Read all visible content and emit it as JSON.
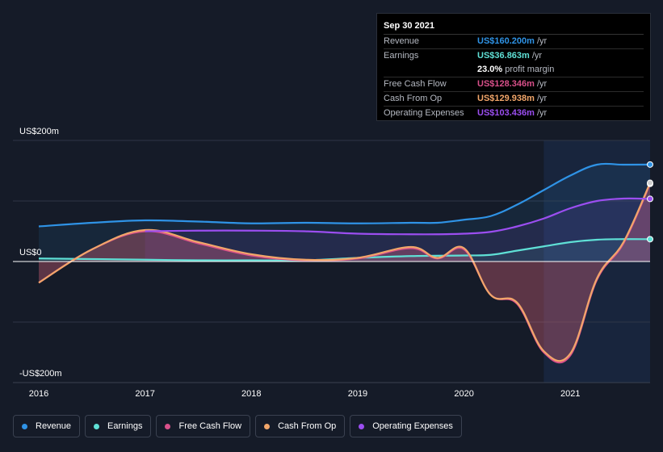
{
  "tooltip": {
    "date": "Sep 30 2021",
    "rows": {
      "revenue": {
        "label": "Revenue",
        "value": "US$160.200m",
        "unit": "/yr",
        "color": "#2f93e6"
      },
      "earnings": {
        "label": "Earnings",
        "value": "US$36.863m",
        "unit": "/yr",
        "color": "#5fe0d6"
      },
      "margin": {
        "value": "23.0%",
        "text": "profit margin"
      },
      "fcf": {
        "label": "Free Cash Flow",
        "value": "US$128.346m",
        "unit": "/yr",
        "color": "#d9508a"
      },
      "cfo": {
        "label": "Cash From Op",
        "value": "US$129.938m",
        "unit": "/yr",
        "color": "#f2a66a"
      },
      "opex": {
        "label": "Operating Expenses",
        "value": "US$103.436m",
        "unit": "/yr",
        "color": "#9b4ef0"
      }
    }
  },
  "legend": [
    {
      "label": "Revenue",
      "color": "#2f93e6"
    },
    {
      "label": "Earnings",
      "color": "#5fe0d6"
    },
    {
      "label": "Free Cash Flow",
      "color": "#d9508a"
    },
    {
      "label": "Cash From Op",
      "color": "#f2a66a"
    },
    {
      "label": "Operating Expenses",
      "color": "#9b4ef0"
    }
  ],
  "chart_data": {
    "type": "line",
    "title": "",
    "xlabel": "",
    "ylabel": "",
    "y_tick_labels": [
      "US$200m",
      "US$0",
      "-US$200m"
    ],
    "x_tick_labels": [
      "2016",
      "2017",
      "2018",
      "2019",
      "2020",
      "2021"
    ],
    "xlim": [
      2016,
      2021.75
    ],
    "ylim": [
      -200,
      200
    ],
    "shaded_past_from": 2020.75,
    "series": [
      {
        "name": "Revenue",
        "color": "#2f93e6",
        "x": [
          2016,
          2016.5,
          2017,
          2017.5,
          2018,
          2018.5,
          2019,
          2019.5,
          2019.75,
          2020,
          2020.25,
          2020.5,
          2020.75,
          2021,
          2021.25,
          2021.5,
          2021.75
        ],
        "y": [
          58,
          64,
          68,
          66,
          63,
          64,
          63,
          64,
          64,
          69,
          75,
          94,
          118,
          142,
          160,
          160,
          160.2
        ]
      },
      {
        "name": "Earnings",
        "color": "#5fe0d6",
        "x": [
          2016,
          2016.5,
          2017,
          2017.5,
          2018,
          2018.5,
          2019,
          2019.5,
          2020,
          2020.25,
          2020.5,
          2020.75,
          2021,
          2021.25,
          2021.5,
          2021.75
        ],
        "y": [
          5,
          4,
          3,
          2,
          2,
          2,
          6,
          9,
          10,
          11,
          18,
          25,
          32,
          36,
          37,
          36.863
        ]
      },
      {
        "name": "Free Cash Flow",
        "color": "#d9508a",
        "x": [
          2016,
          2016.5,
          2017,
          2017.5,
          2018,
          2018.5,
          2019,
          2019.5,
          2019.75,
          2020,
          2020.25,
          2020.5,
          2020.75,
          2021,
          2021.25,
          2021.5,
          2021.75
        ],
        "y": [
          -35,
          20,
          50,
          30,
          10,
          2,
          5,
          22,
          5,
          20,
          -55,
          -70,
          -150,
          -155,
          -30,
          30,
          128.346
        ]
      },
      {
        "name": "Cash From Op",
        "color": "#f2a66a",
        "x": [
          2016,
          2016.5,
          2017,
          2017.5,
          2018,
          2018.5,
          2019,
          2019.5,
          2019.75,
          2020,
          2020.25,
          2020.5,
          2020.75,
          2021,
          2021.25,
          2021.5,
          2021.75
        ],
        "y": [
          -35,
          20,
          52,
          32,
          12,
          3,
          6,
          24,
          6,
          22,
          -55,
          -68,
          -148,
          -152,
          -28,
          32,
          129.938
        ]
      },
      {
        "name": "Operating Expenses",
        "color": "#9b4ef0",
        "x": [
          2016,
          2016.5,
          2017,
          2017.5,
          2018,
          2018.5,
          2019,
          2019.5,
          2019.75,
          2020,
          2020.25,
          2020.5,
          2020.75,
          2021,
          2021.25,
          2021.5,
          2021.75
        ],
        "y": [
          null,
          null,
          50,
          51,
          51,
          50,
          46,
          45,
          45,
          46,
          49,
          58,
          71,
          88,
          100,
          104,
          103.436
        ]
      }
    ]
  }
}
